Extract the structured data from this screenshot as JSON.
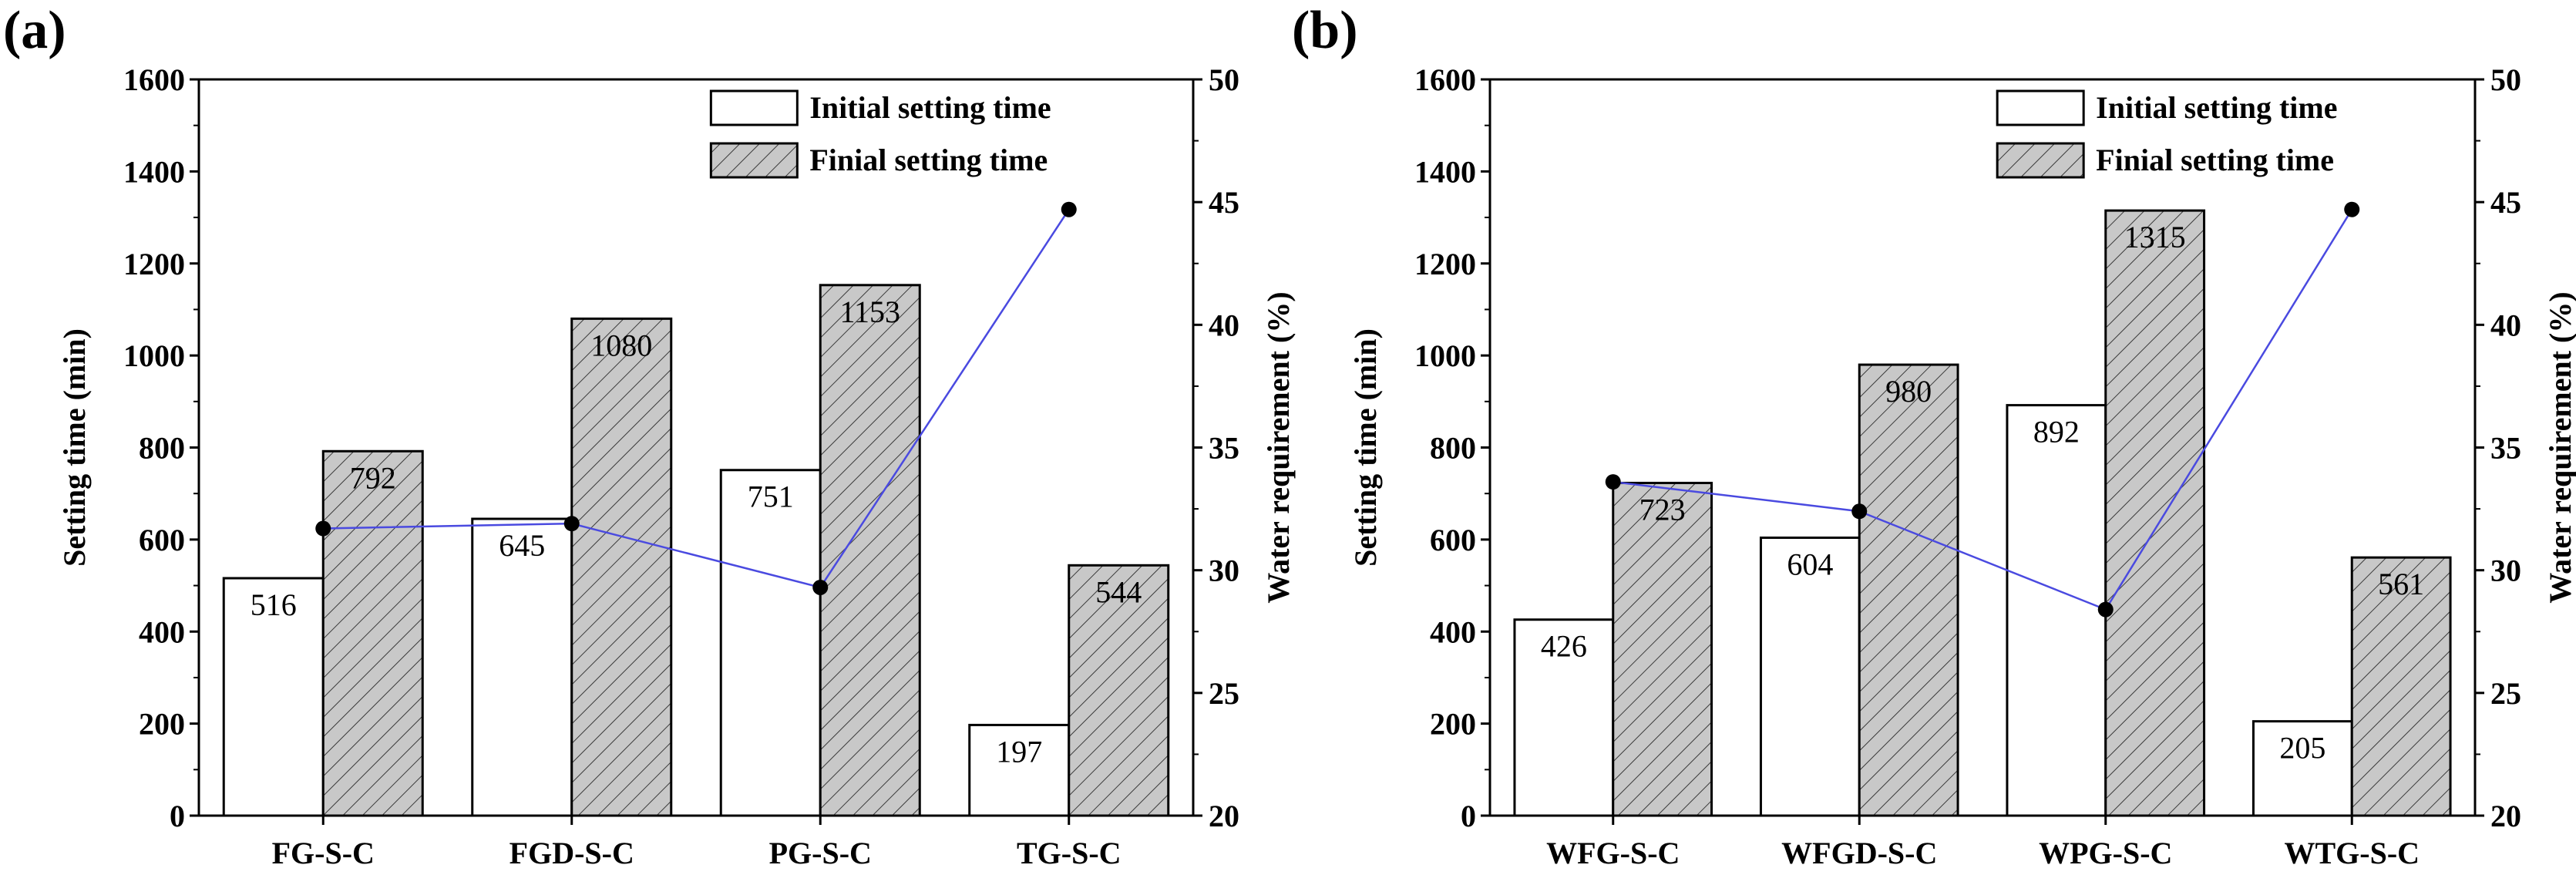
{
  "colors": {
    "axis": "#000000",
    "hatch_fill": "#c8c8c8",
    "line": "#4a4ae0",
    "marker": "#000000",
    "background": "#ffffff"
  },
  "chart_data": [
    {
      "type": "bar",
      "panel_label": "(a)",
      "categories": [
        "FG-S-C",
        "FGD-S-C",
        "PG-S-C",
        "TG-S-C"
      ],
      "series": [
        {
          "name": "Initial setting time",
          "values": [
            516,
            645,
            751,
            197
          ]
        },
        {
          "name": "Finial setting time",
          "values": [
            792,
            1080,
            1153,
            544
          ]
        }
      ],
      "secondary_line": {
        "name": "Water requirement",
        "values": [
          31.7,
          31.9,
          29.3,
          44.7
        ]
      },
      "ylabel": "Setting time (min)",
      "ylim": [
        0,
        1600
      ],
      "yticks": [
        0,
        200,
        400,
        600,
        800,
        1000,
        1200,
        1400,
        1600
      ],
      "y2label": "Water requirement (%)",
      "y2lim": [
        20,
        50
      ],
      "y2ticks": [
        20,
        25,
        30,
        35,
        40,
        45,
        50
      ],
      "legend_position": "top-right"
    },
    {
      "type": "bar",
      "panel_label": "(b)",
      "categories": [
        "WFG-S-C",
        "WFGD-S-C",
        "WPG-S-C",
        "WTG-S-C"
      ],
      "series": [
        {
          "name": "Initial setting time",
          "values": [
            426,
            604,
            892,
            205
          ]
        },
        {
          "name": "Finial setting time",
          "values": [
            723,
            980,
            1315,
            561
          ]
        }
      ],
      "secondary_line": {
        "name": "Water requirement",
        "values": [
          33.6,
          32.4,
          28.4,
          44.7
        ]
      },
      "ylabel": "Setting time (min)",
      "ylim": [
        0,
        1600
      ],
      "yticks": [
        0,
        200,
        400,
        600,
        800,
        1000,
        1200,
        1400,
        1600
      ],
      "y2label": "Water requirement (%)",
      "y2lim": [
        20,
        50
      ],
      "y2ticks": [
        20,
        25,
        30,
        35,
        40,
        45,
        50
      ],
      "legend_position": "top-right"
    }
  ]
}
